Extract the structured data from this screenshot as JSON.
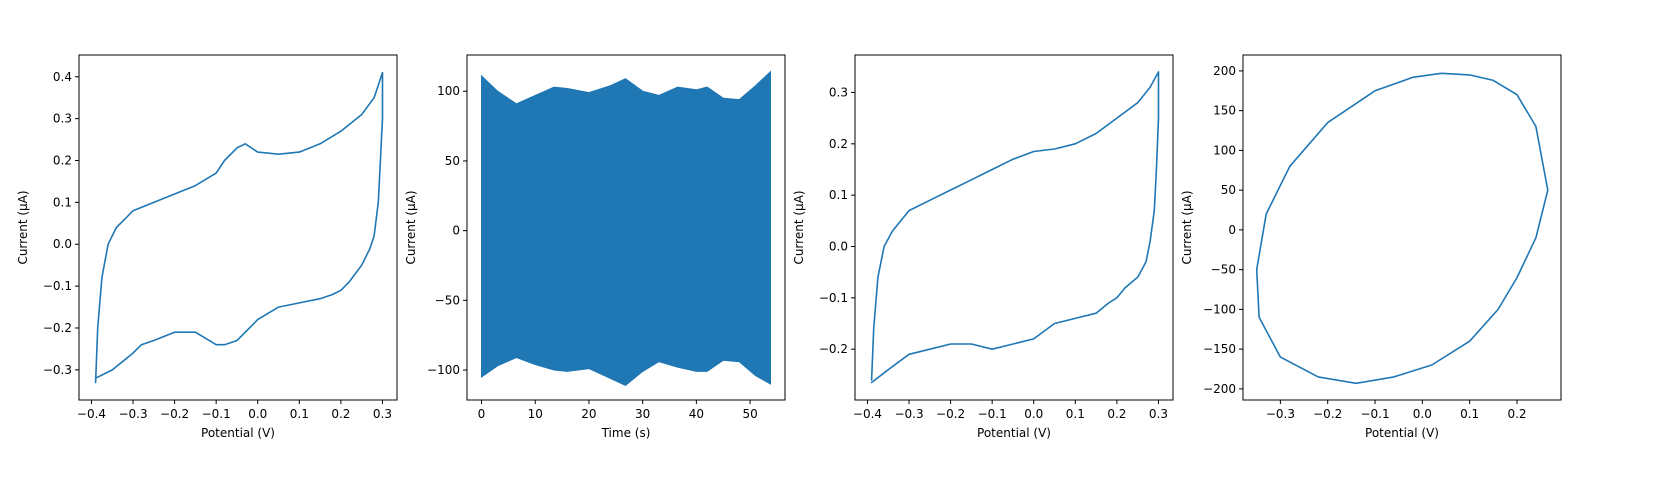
{
  "figure": {
    "line_color": "#1f77b4"
  },
  "chart_data": [
    {
      "type": "line",
      "xlabel": "Potential (V)",
      "ylabel": "Current (μA)",
      "xlim": [
        -0.43,
        0.335
      ],
      "ylim": [
        -0.372,
        0.452
      ],
      "xticks": [
        -0.4,
        -0.3,
        -0.2,
        -0.1,
        0.0,
        0.1,
        0.2,
        0.3
      ],
      "xtick_labels": [
        "−0.4",
        "−0.3",
        "−0.2",
        "−0.1",
        "0.0",
        "0.1",
        "0.2",
        "0.3"
      ],
      "yticks": [
        -0.3,
        -0.2,
        -0.1,
        0.0,
        0.1,
        0.2,
        0.3,
        0.4
      ],
      "ytick_labels": [
        "−0.3",
        "−0.2",
        "−0.1",
        "0.0",
        "0.1",
        "0.2",
        "0.3",
        "0.4"
      ],
      "series": [
        {
          "x": [
            -0.39,
            -0.385,
            -0.375,
            -0.36,
            -0.34,
            -0.3,
            -0.25,
            -0.2,
            -0.15,
            -0.1,
            -0.08,
            -0.05,
            -0.03,
            0.0,
            0.05,
            0.1,
            0.15,
            0.2,
            0.25,
            0.28,
            0.3,
            0.3,
            0.295,
            0.29,
            0.28,
            0.27,
            0.25,
            0.22,
            0.2,
            0.18,
            0.15,
            0.1,
            0.05,
            0.0,
            -0.03,
            -0.05,
            -0.08,
            -0.1,
            -0.15,
            -0.2,
            -0.25,
            -0.28,
            -0.3,
            -0.35,
            -0.39
          ],
          "y": [
            -0.33,
            -0.2,
            -0.08,
            0.0,
            0.04,
            0.08,
            0.1,
            0.12,
            0.14,
            0.17,
            0.2,
            0.23,
            0.24,
            0.22,
            0.215,
            0.22,
            0.24,
            0.27,
            0.31,
            0.35,
            0.41,
            0.3,
            0.2,
            0.1,
            0.02,
            -0.01,
            -0.05,
            -0.09,
            -0.11,
            -0.12,
            -0.13,
            -0.14,
            -0.15,
            -0.18,
            -0.21,
            -0.23,
            -0.24,
            -0.24,
            -0.21,
            -0.21,
            -0.23,
            -0.24,
            -0.26,
            -0.3,
            -0.32
          ]
        }
      ]
    },
    {
      "type": "area",
      "xlabel": "Time (s)",
      "ylabel": "Current (μA)",
      "xlim": [
        -2.7,
        56.5
      ],
      "ylim": [
        -121.5,
        126.0
      ],
      "xticks": [
        0,
        10,
        20,
        30,
        40,
        50
      ],
      "xtick_labels": [
        "0",
        "10",
        "20",
        "30",
        "40",
        "50"
      ],
      "yticks": [
        -100,
        -50,
        0,
        50,
        100
      ],
      "ytick_labels": [
        "−100",
        "−50",
        "0",
        "50",
        "100"
      ],
      "series": [
        {
          "x": [
            0,
            3,
            6.5,
            10,
            13.5,
            16,
            20,
            24,
            26.8,
            30,
            33,
            36.5,
            40,
            42,
            45,
            48,
            51,
            53.8
          ],
          "upper": [
            111,
            100,
            91,
            97,
            103,
            102,
            99,
            104,
            109,
            100,
            97,
            103,
            101,
            103,
            95,
            94,
            104,
            114
          ],
          "lower": [
            -105,
            -97,
            -91,
            -96,
            -100,
            -101,
            -99,
            -106,
            -111,
            -101,
            -94,
            -98,
            -101,
            -101,
            -93,
            -94,
            -104,
            -110
          ]
        }
      ]
    },
    {
      "type": "line",
      "xlabel": "Potential (V)",
      "ylabel": "Current (μA)",
      "xlim": [
        -0.43,
        0.335
      ],
      "ylim": [
        -0.299,
        0.373
      ],
      "xticks": [
        -0.4,
        -0.3,
        -0.2,
        -0.1,
        0.0,
        0.1,
        0.2,
        0.3
      ],
      "xtick_labels": [
        "−0.4",
        "−0.3",
        "−0.2",
        "−0.1",
        "0.0",
        "0.1",
        "0.2",
        "0.3"
      ],
      "yticks": [
        -0.2,
        -0.1,
        0.0,
        0.1,
        0.2,
        0.3
      ],
      "ytick_labels": [
        "−0.2",
        "−0.1",
        "0.0",
        "0.1",
        "0.2",
        "0.3"
      ],
      "series": [
        {
          "x": [
            -0.39,
            -0.385,
            -0.375,
            -0.36,
            -0.34,
            -0.3,
            -0.25,
            -0.2,
            -0.15,
            -0.1,
            -0.05,
            0.0,
            0.05,
            0.1,
            0.15,
            0.2,
            0.25,
            0.28,
            0.3,
            0.3,
            0.295,
            0.29,
            0.28,
            0.27,
            0.25,
            0.22,
            0.2,
            0.18,
            0.15,
            0.1,
            0.05,
            0.0,
            -0.05,
            -0.1,
            -0.15,
            -0.2,
            -0.25,
            -0.3,
            -0.35,
            -0.39
          ],
          "y": [
            -0.26,
            -0.16,
            -0.06,
            0.0,
            0.03,
            0.07,
            0.09,
            0.11,
            0.13,
            0.15,
            0.17,
            0.185,
            0.19,
            0.2,
            0.22,
            0.25,
            0.28,
            0.31,
            0.34,
            0.25,
            0.15,
            0.07,
            0.01,
            -0.03,
            -0.06,
            -0.08,
            -0.1,
            -0.11,
            -0.13,
            -0.14,
            -0.15,
            -0.18,
            -0.19,
            -0.2,
            -0.19,
            -0.19,
            -0.2,
            -0.21,
            -0.24,
            -0.265
          ]
        }
      ]
    },
    {
      "type": "line",
      "xlabel": "Potential (V)",
      "ylabel": "Current (μA)",
      "xlim": [
        -0.379,
        0.293
      ],
      "ylim": [
        -214.0,
        220.0
      ],
      "xticks": [
        -0.3,
        -0.2,
        -0.1,
        0.0,
        0.1,
        0.2
      ],
      "xtick_labels": [
        "−0.3",
        "−0.2",
        "−0.1",
        "0.0",
        "0.1",
        "0.2"
      ],
      "yticks": [
        -200,
        -150,
        -100,
        -50,
        0,
        50,
        100,
        150,
        200
      ],
      "ytick_labels": [
        "−200",
        "−150",
        "−100",
        "−50",
        "0",
        "50",
        "100",
        "150",
        "200"
      ],
      "series": [
        {
          "x": [
            0.265,
            0.24,
            0.2,
            0.15,
            0.1,
            0.04,
            -0.02,
            -0.1,
            -0.2,
            -0.28,
            -0.33,
            -0.35,
            -0.345,
            -0.3,
            -0.22,
            -0.14,
            -0.06,
            0.02,
            0.1,
            0.16,
            0.2,
            0.24,
            0.265
          ],
          "y": [
            50,
            130,
            170,
            188,
            195,
            197,
            192,
            175,
            135,
            80,
            20,
            -50,
            -110,
            -160,
            -185,
            -193,
            -185,
            -170,
            -140,
            -100,
            -60,
            -10,
            50
          ]
        }
      ]
    }
  ]
}
